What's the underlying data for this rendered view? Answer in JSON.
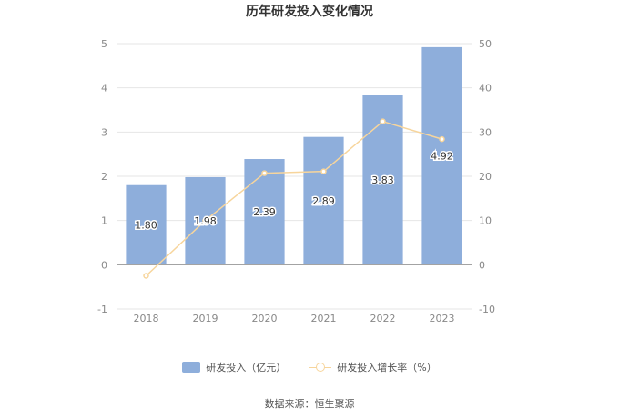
{
  "chart_data": {
    "type": "bar",
    "title": "历年研发投入变化情况",
    "categories": [
      "2018",
      "2019",
      "2020",
      "2021",
      "2022",
      "2023"
    ],
    "series": [
      {
        "name": "研发投入（亿元）",
        "kind": "bar",
        "axis": "left",
        "values": [
          1.8,
          1.98,
          2.39,
          2.89,
          3.83,
          4.92
        ],
        "labels": [
          "1.80",
          "1.98",
          "2.39",
          "2.89",
          "3.83",
          "4.92"
        ]
      },
      {
        "name": "研发投入增长率（%）",
        "kind": "line",
        "axis": "right",
        "values": [
          -2.5,
          10.0,
          20.7,
          21.1,
          32.4,
          28.4
        ]
      }
    ],
    "y_left": {
      "min": -1,
      "max": 5,
      "ticks": [
        "-1",
        "0",
        "1",
        "2",
        "3",
        "4",
        "5"
      ]
    },
    "y_right": {
      "min": -10,
      "max": 50,
      "ticks": [
        "-10",
        "0",
        "10",
        "20",
        "30",
        "40",
        "50"
      ]
    },
    "grid": true,
    "legend_position": "bottom",
    "colors": {
      "bar": "#8eaedb",
      "line": "#f7d59c",
      "grid": "#e6e6e6",
      "axis_text": "#888888",
      "bar_label": "#333333"
    }
  },
  "source_text": "数据来源：恒生聚源"
}
